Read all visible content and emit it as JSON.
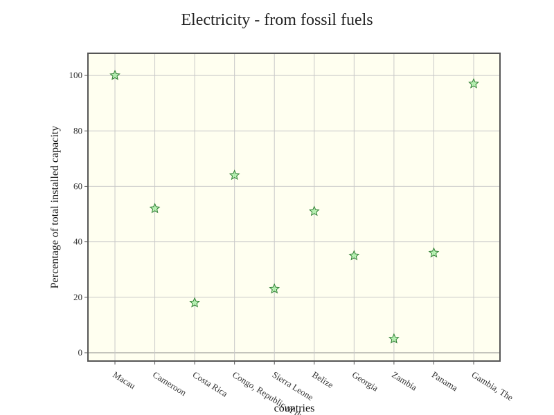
{
  "chart_data": {
    "type": "scatter",
    "title": "Electricity - from fossil fuels",
    "xlabel": "countries",
    "ylabel": "Percentage of total installed capacity",
    "categories": [
      "Macau",
      "Cameroon",
      "Costa Rica",
      "Congo, Republic of the",
      "Sierra Leone",
      "Belize",
      "Georgia",
      "Zambia",
      "Panama",
      "Gambia, The"
    ],
    "values": [
      100,
      52,
      18,
      64,
      23,
      51,
      35,
      5,
      36,
      97
    ],
    "ylim": [
      -3,
      108
    ],
    "yticks": [
      0,
      20,
      40,
      60,
      80,
      100
    ],
    "grid": true,
    "marker": "star",
    "colors": {
      "plot_background": "#fffff0",
      "marker_fill": "#90ee90",
      "marker_stroke": "#2e7d32",
      "grid": "#c8c8c8",
      "frame": "#555555"
    }
  }
}
